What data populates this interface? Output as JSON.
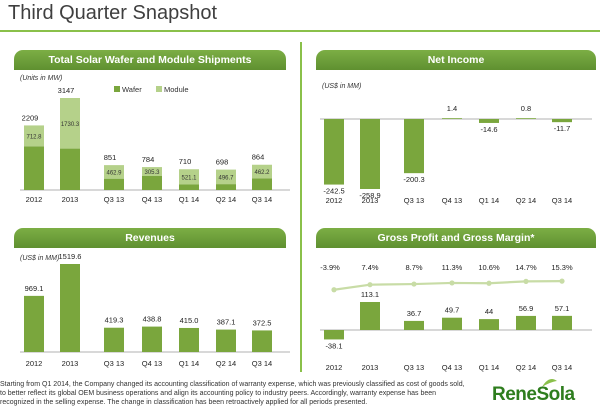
{
  "page": {
    "title": "Third Quarter Snapshot",
    "footnote": "Starting from Q1 2014, the Company changed its accounting classification of warranty expense, which was previously classified as cost of goods sold, to better reflect its global OEM business operations and align its accounting policy to industry peers. Accordingly, warranty expense has been recognized in the selling expense. The change in classification has been retroactively applied for all periods presented.",
    "logo": "ReneSola",
    "accent_color": "#7cae45"
  },
  "chart_data": [
    {
      "id": "shipments",
      "type": "bar",
      "title": "Total Solar Wafer and Module Shipments",
      "unit_label": "(Units in MW)",
      "categories": [
        "2012",
        "2013",
        "Q3 13",
        "Q4 13",
        "Q1 14",
        "Q2 14",
        "Q3 14"
      ],
      "series": [
        {
          "name": "Wafer",
          "values": [
            1496.2,
            1416.7,
            388.1,
            478.7,
            188.9,
            201.3,
            401.8
          ],
          "color": "#7aa63d"
        },
        {
          "name": "Module",
          "values": [
            712.8,
            1730.3,
            462.9,
            305.3,
            521.1,
            496.7,
            462.2
          ],
          "color": "#b5d18a"
        }
      ],
      "inner_labels": [
        "712.8",
        "1730.3",
        "462.9",
        "305.3",
        "521.1",
        "496.7",
        "462.2"
      ],
      "total_labels": [
        "2209",
        "3147",
        "851",
        "784",
        "710",
        "698",
        "864"
      ],
      "stacked": true
    },
    {
      "id": "net_income",
      "type": "bar",
      "title": "Net Income",
      "unit_label": "(US$ in MM)",
      "categories": [
        "2012",
        "2013",
        "Q3 13",
        "Q4 13",
        "Q1 14",
        "Q2 14",
        "Q3 14"
      ],
      "values": [
        -242.5,
        -258.9,
        -200.3,
        1.4,
        -14.6,
        0.8,
        -11.7
      ],
      "value_labels": [
        "-242.5",
        "-258.9",
        "-200.3",
        "1.4",
        "-14.6",
        "0.8",
        "-11.7"
      ],
      "color": "#7aa63d"
    },
    {
      "id": "revenues",
      "type": "bar",
      "title": "Revenues",
      "unit_label": "(US$ in MM)",
      "categories": [
        "2012",
        "2013",
        "Q3 13",
        "Q4 13",
        "Q1 14",
        "Q2 14",
        "Q3 14"
      ],
      "values": [
        969.1,
        1519.6,
        419.3,
        438.8,
        415.0,
        387.1,
        372.5
      ],
      "value_labels": [
        "969.1",
        "1519.6",
        "419.3",
        "438.8",
        "415.0",
        "387.1",
        "372.5"
      ],
      "color": "#7aa63d"
    },
    {
      "id": "gross_profit",
      "type": "bar",
      "title": "Gross Profit and Gross Margin*",
      "categories": [
        "2012",
        "2013",
        "Q3 13",
        "Q4 13",
        "Q1 14",
        "Q2 14",
        "Q3 14"
      ],
      "values": [
        -38.1,
        113.1,
        36.7,
        49.7,
        44,
        56.9,
        57.1
      ],
      "value_labels": [
        "-38.1",
        "113.1",
        "36.7",
        "49.7",
        "44",
        "56.9",
        "57.1"
      ],
      "margin_values": [
        -3.9,
        7.4,
        8.7,
        11.3,
        10.6,
        14.7,
        15.3
      ],
      "margin_labels": [
        "-3.9%",
        "7.4%",
        "8.7%",
        "11.3%",
        "10.6%",
        "14.7%",
        "15.3%"
      ],
      "color": "#7aa63d",
      "line_color": "#c8dca6"
    }
  ]
}
